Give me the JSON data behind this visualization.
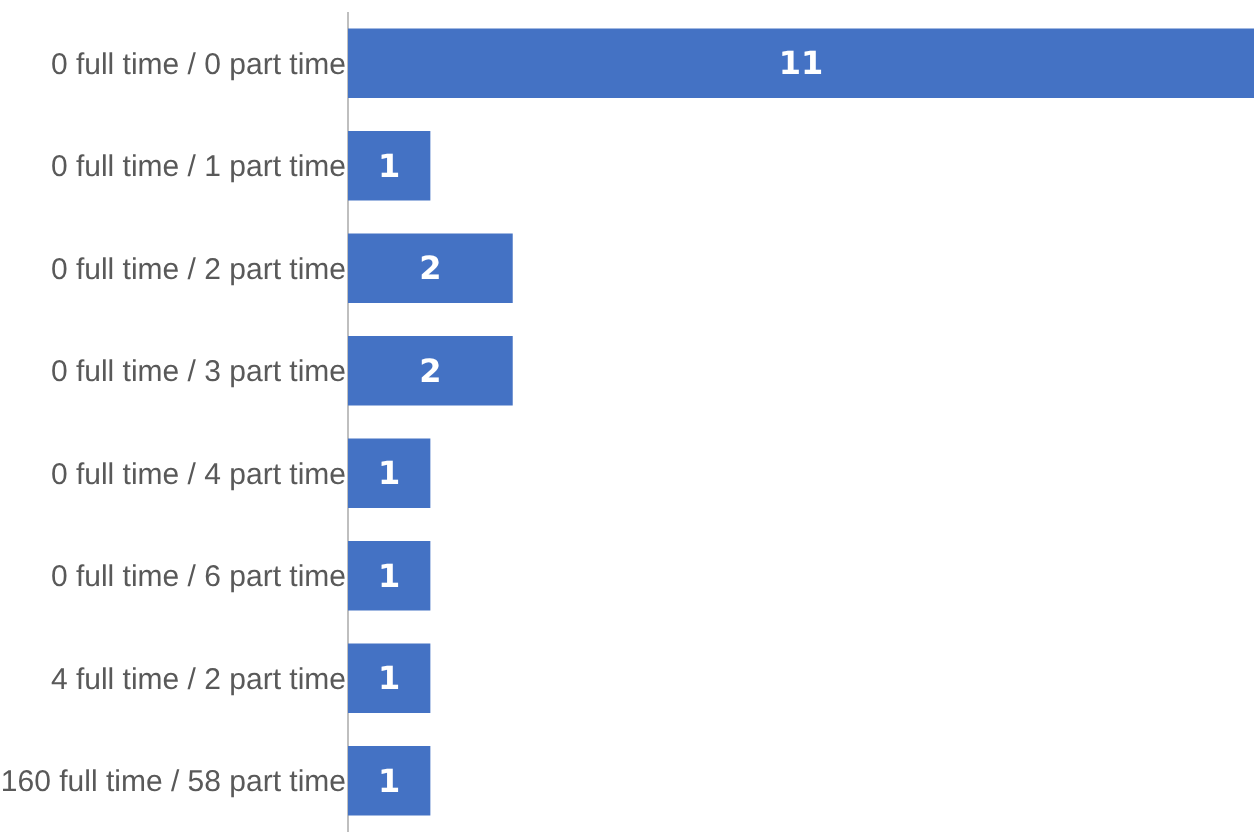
{
  "chart_data": {
    "type": "bar",
    "orientation": "horizontal",
    "categories": [
      "0 full time / 0 part time",
      "0 full time / 1 part time",
      "0 full time / 2 part time",
      "0 full time / 3 part time",
      "0 full time / 4 part time",
      "0 full time / 6 part time",
      "4 full time / 2 part time",
      "160 full time / 58 part time"
    ],
    "values": [
      11,
      1,
      2,
      2,
      1,
      1,
      1,
      1
    ],
    "color": "#4472c4",
    "data_labels": true,
    "grid": false,
    "legend": false
  }
}
